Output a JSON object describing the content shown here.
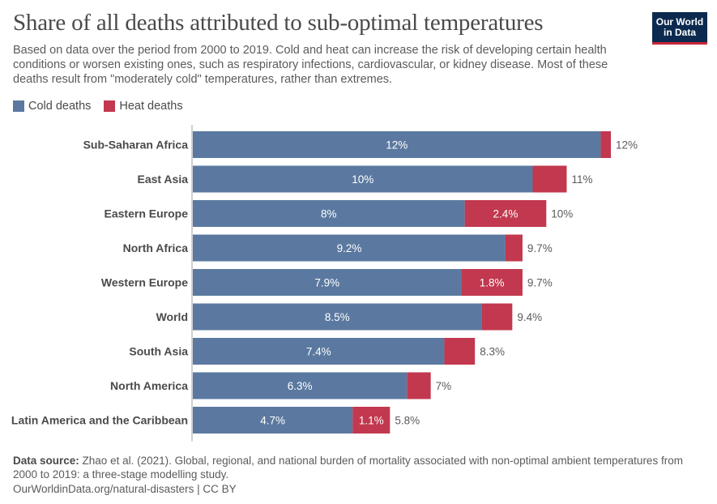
{
  "title": "Share of all deaths attributed to sub-optimal temperatures",
  "subtitle": "Based on data over the period from 2000 to 2019. Cold and heat can increase the risk of developing certain health conditions or worsen existing ones, such as respiratory infections, cardiovascular, or kidney disease. Most of these deaths result from \"moderately cold\" temperatures, rather than extremes.",
  "logo": {
    "line1": "Our World",
    "line2": "in Data"
  },
  "colors": {
    "cold": "#5b79a0",
    "heat": "#c2384f",
    "axis": "#a0a0a0"
  },
  "footer": {
    "source_label": "Data source:",
    "source_text": "Zhao et al. (2021). Global, regional, and national burden of mortality associated with non-optimal ambient temperatures from 2000 to 2019: a three-stage modelling study.",
    "link": "OurWorldinData.org/natural-disasters | CC BY"
  },
  "chart_data": {
    "type": "bar",
    "orientation": "horizontal",
    "stacked": true,
    "legend_position": "top-left",
    "categories": [
      "Sub-Saharan Africa",
      "East Asia",
      "Eastern Europe",
      "North Africa",
      "Western Europe",
      "World",
      "South Asia",
      "North America",
      "Latin America and the Caribbean"
    ],
    "series": [
      {
        "name": "Cold deaths",
        "values": [
          12.0,
          10.0,
          8.0,
          9.2,
          7.9,
          8.5,
          7.4,
          6.3,
          4.7
        ],
        "labels": [
          "12%",
          "10%",
          "8%",
          "9.2%",
          "7.9%",
          "8.5%",
          "7.4%",
          "6.3%",
          "4.7%"
        ]
      },
      {
        "name": "Heat deaths",
        "values": [
          0.3,
          1.0,
          2.4,
          0.5,
          1.8,
          0.9,
          0.9,
          0.7,
          1.1
        ],
        "labels": [
          "",
          "",
          "2.4%",
          "",
          "1.8%",
          "",
          "",
          "",
          "1.1%"
        ]
      }
    ],
    "totals": [
      "12%",
      "11%",
      "10%",
      "9.7%",
      "9.7%",
      "9.4%",
      "8.3%",
      "7%",
      "5.8%"
    ],
    "xlim": [
      0,
      12.3
    ]
  }
}
